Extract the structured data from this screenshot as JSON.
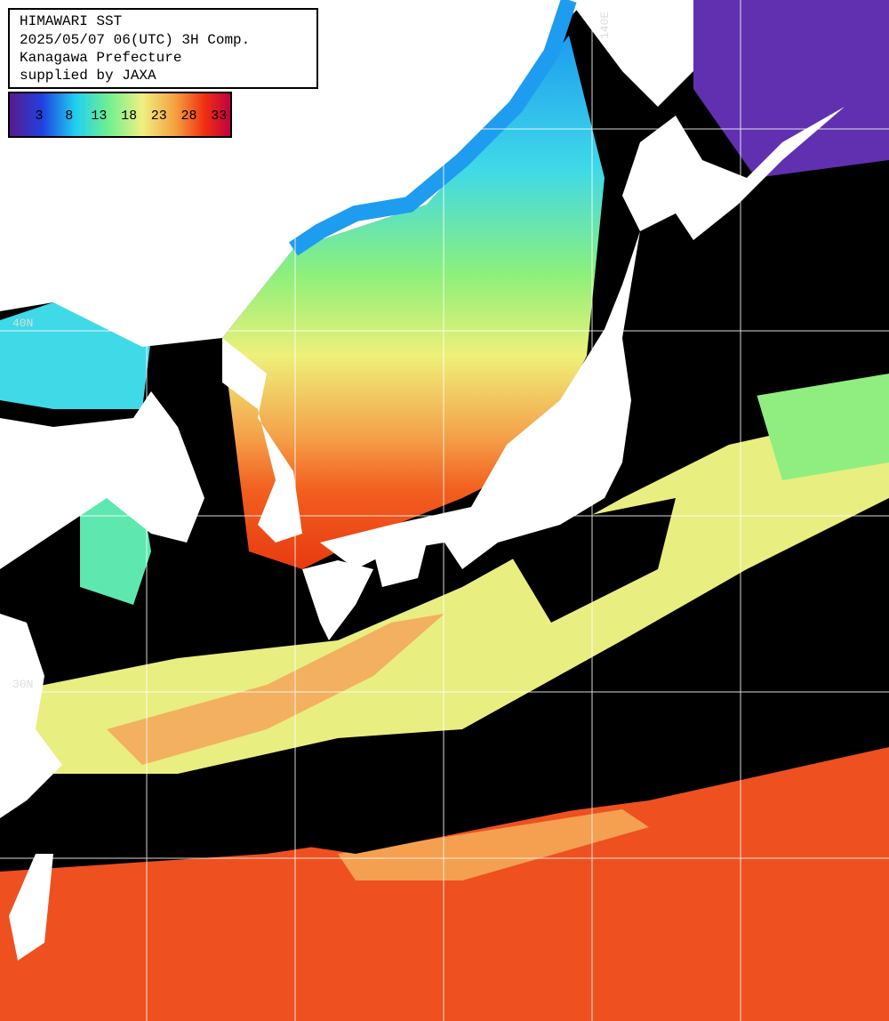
{
  "header": {
    "lines": [
      "HIMAWARI SST",
      "2025/05/07 06(UTC) 3H Comp.",
      "Kanagawa Prefecture",
      "supplied by JAXA"
    ]
  },
  "colorbar": {
    "labels": [
      "3",
      "8",
      "13",
      "18",
      "23",
      "28",
      "33"
    ]
  },
  "grid": {
    "labels": [
      "140E",
      "40N",
      "30N"
    ]
  }
}
